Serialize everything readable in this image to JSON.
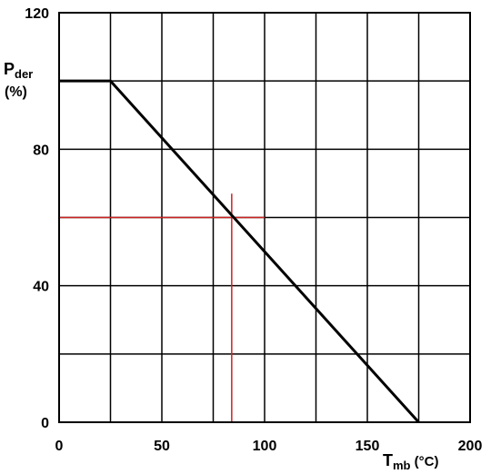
{
  "chart_data": {
    "type": "line",
    "xlim": [
      0,
      200
    ],
    "ylim": [
      0,
      120
    ],
    "x_ticks": [
      "0",
      "50",
      "100",
      "150",
      "200"
    ],
    "y_ticks": [
      "0",
      "40",
      "80",
      "120"
    ],
    "xlabel": {
      "main": "T",
      "sub": "mb",
      "unit": " (°C)"
    },
    "ylabel": {
      "main": "P",
      "sub": "der",
      "unit": "(%)"
    },
    "grid": true,
    "series": [
      {
        "color": "#000000",
        "points": [
          [
            0,
            100
          ],
          [
            25,
            100
          ],
          [
            175,
            0
          ]
        ]
      }
    ],
    "reference_lines": {
      "color": "#cc2222",
      "horizontal": {
        "y": 60,
        "x_range": [
          0,
          100
        ]
      },
      "vertical": {
        "x": 84,
        "y_range": [
          0,
          67
        ]
      }
    }
  }
}
